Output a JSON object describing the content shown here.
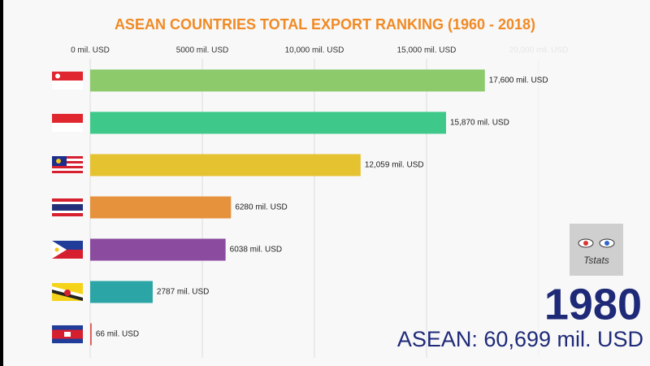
{
  "chart_data": {
    "type": "bar",
    "orientation": "horizontal",
    "title": "ASEAN COUNTRIES TOTAL EXPORT RANKING (1960 - 2018)",
    "categories": [
      null,
      null,
      null,
      null,
      null,
      null,
      null
    ],
    "values": [
      17600,
      15870,
      12059,
      6280,
      6038,
      2787,
      66
    ],
    "value_labels": [
      "17,600 mil. USD",
      "15,870 mil. USD",
      "12,059 mil. USD",
      "6280 mil. USD",
      "6038 mil. USD",
      "2787 mil. USD",
      "66 mil. USD"
    ],
    "colors": [
      "#8cca6c",
      "#3ec98a",
      "#e5c230",
      "#e6913c",
      "#8b4c9f",
      "#2ba5a5",
      "#e05555"
    ],
    "xlim": [
      0,
      20000
    ],
    "xticks": [
      {
        "value": 0,
        "label": "0 mil. USD"
      },
      {
        "value": 5000,
        "label": "5000 mil. USD"
      },
      {
        "value": 10000,
        "label": "10,000 mil. USD"
      },
      {
        "value": 15000,
        "label": "15,000 mil. USD"
      },
      {
        "value": 20000,
        "label": "20,000 mil. USD"
      }
    ],
    "grid": true,
    "year": "1980",
    "total_label": "ASEAN: 60,699 mil. USD",
    "logo_text": "Tstats"
  }
}
